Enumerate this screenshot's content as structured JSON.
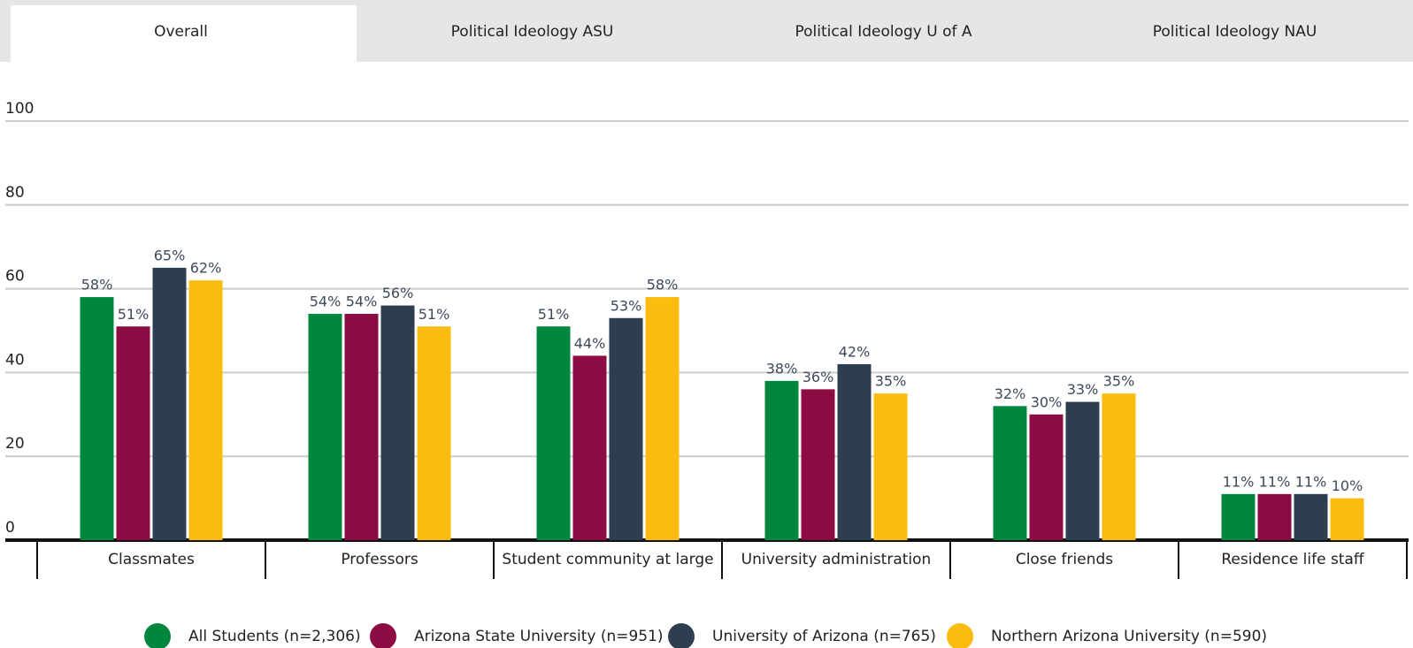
{
  "tabs": {
    "items": [
      "Overall",
      "Political Ideology ASU",
      "Political Ideology U of A",
      "Political Ideology NAU"
    ],
    "active": 0
  },
  "chart_data": {
    "type": "bar",
    "categories": [
      "Classmates",
      "Professors",
      "Student community at large",
      "University administration",
      "Close friends",
      "Residence life staff"
    ],
    "series": [
      {
        "name": "All Students (n=2,306)",
        "color": "#00873e",
        "values": [
          58,
          54,
          51,
          38,
          32,
          11
        ],
        "value_labels": [
          "58%",
          "54%",
          "51%",
          "38%",
          "32%",
          "11%"
        ]
      },
      {
        "name": "Arizona State University (n=951)",
        "color": "#8c0b42",
        "values": [
          51,
          54,
          44,
          36,
          30,
          11
        ],
        "value_labels": [
          "51%",
          "54%",
          "44%",
          "36%",
          "30%",
          "11%"
        ]
      },
      {
        "name": "University of Arizona (n=765)",
        "color": "#2c3e50",
        "values": [
          65,
          56,
          53,
          42,
          33,
          11
        ],
        "value_labels": [
          "65%",
          "56%",
          "53%",
          "42%",
          "33%",
          "11%"
        ]
      },
      {
        "name": "Northern Arizona University (n=590)",
        "color": "#fbbc0f",
        "values": [
          62,
          51,
          58,
          35,
          35,
          10
        ],
        "value_labels": [
          "62%",
          "51%",
          "58%",
          "35%",
          "35%",
          "10%"
        ]
      }
    ],
    "ylim": [
      0,
      100
    ],
    "yticks": [
      0,
      20,
      40,
      60,
      80,
      100
    ],
    "grid": true,
    "legend": "bottom"
  }
}
